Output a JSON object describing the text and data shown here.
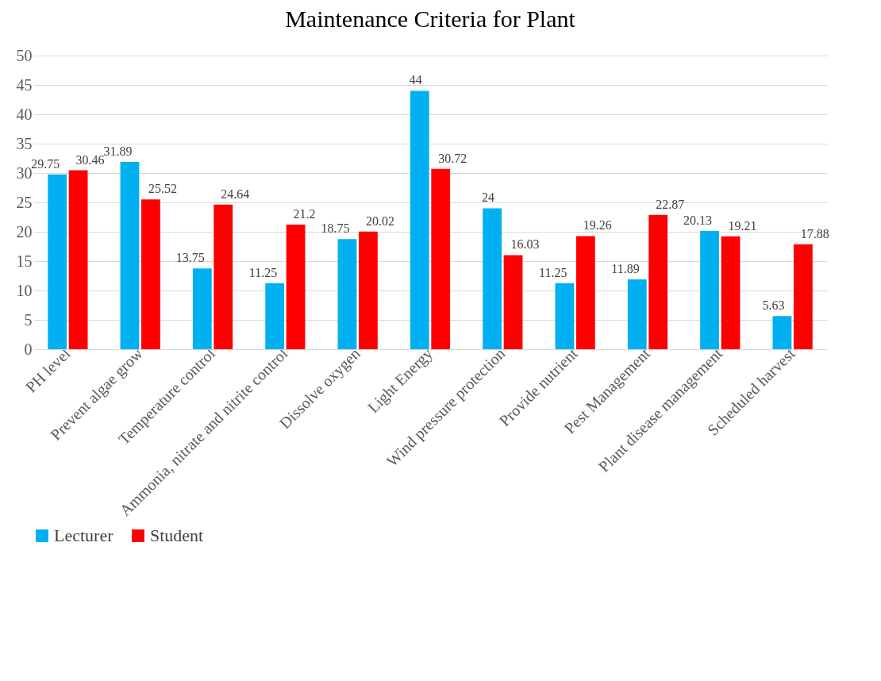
{
  "chart_data": {
    "type": "bar",
    "title": "Maintenance Criteria for Plant",
    "categories": [
      "PH level",
      "Prevent algae grow",
      "Temperature control",
      "Ammonia, nitrate and nitrite control",
      "Dissolve oxygen",
      "Light Energy",
      "Wind pressure protection",
      "Provide nutrient",
      "Pest Management",
      "Plant disease management",
      "Scheduled harvest"
    ],
    "series": [
      {
        "name": "Lecturer",
        "color": "#00b0f0",
        "values": [
          29.75,
          31.89,
          13.75,
          11.25,
          18.75,
          44,
          24,
          11.25,
          11.89,
          20.13,
          5.63
        ]
      },
      {
        "name": "Student",
        "color": "#ff0000",
        "values": [
          30.46,
          25.52,
          24.64,
          21.2,
          20.02,
          30.72,
          16.03,
          19.26,
          22.87,
          19.21,
          17.88
        ]
      }
    ],
    "ylim": [
      0,
      50
    ],
    "yticks": [
      0,
      5,
      10,
      15,
      20,
      25,
      30,
      35,
      40,
      45,
      50
    ],
    "grid": "y",
    "legend": "bottom",
    "data_labels": true
  }
}
